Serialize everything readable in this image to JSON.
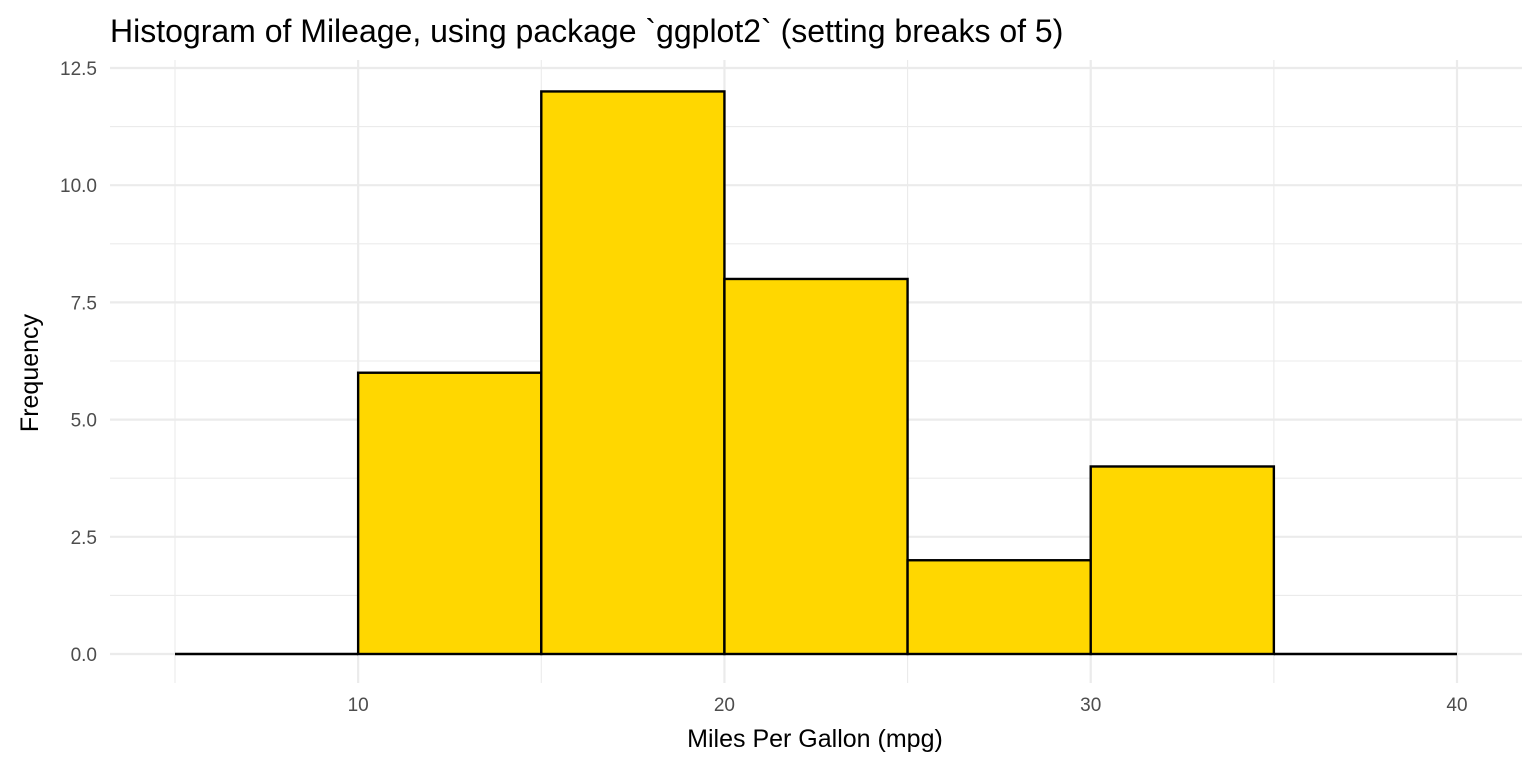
{
  "chart_data": {
    "type": "bar",
    "title": "Histogram of Mileage, using package `ggplot2` (setting breaks of 5)",
    "xlabel": "Miles Per Gallon (mpg)",
    "ylabel": "Frequency",
    "bins": [
      {
        "x0": 5,
        "x1": 10,
        "count": 0
      },
      {
        "x0": 10,
        "x1": 15,
        "count": 6
      },
      {
        "x0": 15,
        "x1": 20,
        "count": 12
      },
      {
        "x0": 20,
        "x1": 25,
        "count": 8
      },
      {
        "x0": 25,
        "x1": 30,
        "count": 2
      },
      {
        "x0": 30,
        "x1": 35,
        "count": 4
      },
      {
        "x0": 35,
        "x1": 40,
        "count": 0
      }
    ],
    "xlim": [
      3.2,
      41.8
    ],
    "ylim": [
      0,
      12.5
    ],
    "x_ticks": [
      10,
      20,
      30,
      40
    ],
    "x_tick_labels": [
      "10",
      "20",
      "30",
      "40"
    ],
    "x_minor_ticks": [
      5,
      15,
      25,
      35
    ],
    "y_ticks": [
      0,
      2.5,
      5,
      7.5,
      10,
      12.5
    ],
    "y_tick_labels": [
      "0.0",
      "2.5",
      "5.0",
      "7.5",
      "10.0",
      "12.5"
    ],
    "y_minor_ticks": [
      1.25,
      3.75,
      6.25,
      8.75,
      11.25
    ],
    "bar_fill": "#FFD700",
    "bar_outline": "#000000",
    "grid": true,
    "legend": "none"
  }
}
